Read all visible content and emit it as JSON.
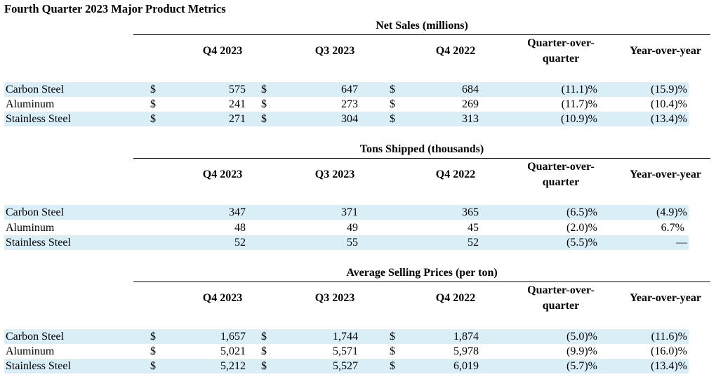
{
  "title": "Fourth Quarter 2023 Major Product Metrics",
  "columns": [
    "Q4 2023",
    "Q3 2023",
    "Q4 2022",
    "Quarter-over-quarter",
    "Year-over-year"
  ],
  "qoq_line1": "Quarter-over-",
  "qoq_line2": "quarter",
  "sections": [
    {
      "title": "Net Sales (millions)",
      "rows": [
        {
          "label": "Carbon Steel",
          "c1": {
            "sym": "$",
            "val": "575"
          },
          "c2": {
            "sym": "$",
            "val": "647"
          },
          "c3": {
            "sym": "$",
            "val": "684"
          },
          "qoq": "(11.1)%",
          "yoy": "(15.9)%"
        },
        {
          "label": "Aluminum",
          "c1": {
            "sym": "$",
            "val": "241"
          },
          "c2": {
            "sym": "$",
            "val": "273"
          },
          "c3": {
            "sym": "$",
            "val": "269"
          },
          "qoq": "(11.7)%",
          "yoy": "(10.4)%"
        },
        {
          "label": "Stainless Steel",
          "c1": {
            "sym": "$",
            "val": "271"
          },
          "c2": {
            "sym": "$",
            "val": "304"
          },
          "c3": {
            "sym": "$",
            "val": "313"
          },
          "qoq": "(10.9)%",
          "yoy": "(13.4)%"
        }
      ]
    },
    {
      "title": "Tons Shipped (thousands)",
      "rows": [
        {
          "label": "Carbon Steel",
          "c1": {
            "sym": "",
            "val": "347"
          },
          "c2": {
            "sym": "",
            "val": "371"
          },
          "c3": {
            "sym": "",
            "val": "365"
          },
          "qoq": "(6.5)%",
          "yoy": "(4.9)%"
        },
        {
          "label": "Aluminum",
          "c1": {
            "sym": "",
            "val": "48"
          },
          "c2": {
            "sym": "",
            "val": "49"
          },
          "c3": {
            "sym": "",
            "val": "45"
          },
          "qoq": "(2.0)%",
          "yoy": "6.7% "
        },
        {
          "label": "Stainless Steel",
          "c1": {
            "sym": "",
            "val": "52"
          },
          "c2": {
            "sym": "",
            "val": "55"
          },
          "c3": {
            "sym": "",
            "val": "52"
          },
          "qoq": "(5.5)%",
          "yoy": "—"
        }
      ]
    },
    {
      "title": "Average Selling Prices (per ton)",
      "rows": [
        {
          "label": "Carbon Steel",
          "c1": {
            "sym": "$",
            "val": "1,657"
          },
          "c2": {
            "sym": "$",
            "val": "1,744"
          },
          "c3": {
            "sym": "$",
            "val": "1,874"
          },
          "qoq": "(5.0)%",
          "yoy": "(11.6)%"
        },
        {
          "label": "Aluminum",
          "c1": {
            "sym": "$",
            "val": "5,021"
          },
          "c2": {
            "sym": "$",
            "val": "5,571"
          },
          "c3": {
            "sym": "$",
            "val": "5,978"
          },
          "qoq": "(9.9)%",
          "yoy": "(16.0)%"
        },
        {
          "label": "Stainless Steel",
          "c1": {
            "sym": "$",
            "val": "5,212"
          },
          "c2": {
            "sym": "$",
            "val": "5,527"
          },
          "c3": {
            "sym": "$",
            "val": "6,019"
          },
          "qoq": "(5.7)%",
          "yoy": "(13.4)%"
        }
      ]
    }
  ]
}
